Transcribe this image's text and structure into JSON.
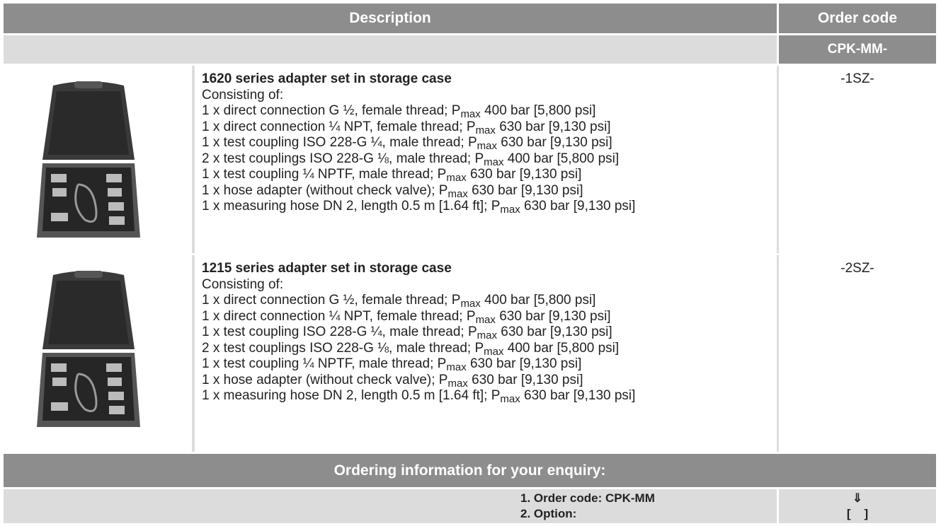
{
  "header": {
    "description": "Description",
    "order_code": "Order code",
    "code_prefix": "CPK-MM-"
  },
  "pmax": {
    "symbol": "P",
    "subscript": "max"
  },
  "products": [
    {
      "title": "1620 series adapter set in storage case",
      "intro": "Consisting of:",
      "items": [
        {
          "before": "1 x direct connection G ½, female thread;",
          "after": "400 bar [5,800 psi]"
        },
        {
          "before": "1 x direct connection ¼ NPT, female thread;",
          "after": "630 bar [9,130 psi]"
        },
        {
          "before": "1 x test coupling ISO 228-G ¼, male thread;",
          "after": "630 bar [9,130 psi]"
        },
        {
          "before": "2 x test couplings ISO 228-G ⅛, male thread;",
          "after": "400 bar [5,800 psi]"
        },
        {
          "before": "1 x test coupling ¼ NPTF, male thread;",
          "after": "630 bar [9,130 psi]"
        },
        {
          "before": "1 x hose adapter (without check valve);",
          "after": "630 bar [9,130 psi]"
        },
        {
          "before": "1 x measuring hose DN 2, length 0.5 m [1.64 ft];",
          "after": "630 bar [9,130 psi]"
        }
      ],
      "code": "-1SZ-"
    },
    {
      "title": "1215 series adapter set in storage case",
      "intro": "Consisting of:",
      "items": [
        {
          "before": "1 x direct connection G ½, female thread;",
          "after": "400 bar [5,800 psi]"
        },
        {
          "before": "1 x direct connection ¼ NPT, female thread;",
          "after": "630 bar [9,130 psi]"
        },
        {
          "before": "1 x test coupling ISO 228-G ¼, male thread;",
          "after": "630 bar [9,130 psi]"
        },
        {
          "before": "2 x test couplings ISO 228-G ⅛, male thread;",
          "after": "400 bar [5,800 psi]"
        },
        {
          "before": "1 x test coupling ¼ NPTF, male thread;",
          "after": "630 bar [9,130 psi]"
        },
        {
          "before": "1 x hose adapter (without check valve);",
          "after": "630 bar [9,130 psi]"
        },
        {
          "before": "1 x measuring hose DN 2, length 0.5 m [1.64 ft];",
          "after": "630 bar [9,130 psi]"
        }
      ],
      "code": "-2SZ-"
    }
  ],
  "ordering": {
    "title": "Ordering information for your enquiry:",
    "steps": [
      "1. Order code: CPK-MM",
      "2. Option:"
    ],
    "arrow": "⇓",
    "option_box": "[    ]"
  }
}
